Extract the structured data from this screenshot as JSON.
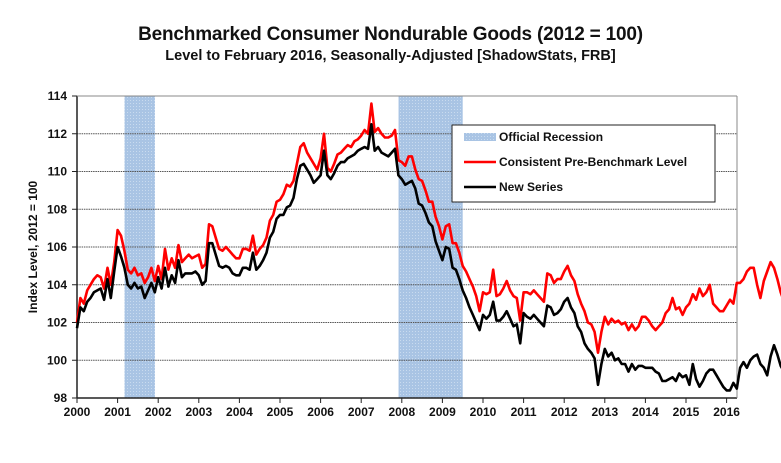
{
  "chart_data": {
    "type": "line",
    "title": "Benchmarked Consumer Nondurable Goods (2012 = 100)",
    "subtitle": "Level to February 2016, Seasonally-Adjusted [ShadowStats, FRB]",
    "xlabel": "",
    "ylabel": "Index Level, 2012 = 100",
    "xlim": [
      2000,
      2016.2
    ],
    "ylim": [
      98,
      114
    ],
    "x_ticks": [
      "2000",
      "2001",
      "2002",
      "2003",
      "2004",
      "2005",
      "2006",
      "2007",
      "2008",
      "2009",
      "2010",
      "2011",
      "2012",
      "2013",
      "2014",
      "2015",
      "2016"
    ],
    "y_ticks": [
      "98",
      "100",
      "102",
      "104",
      "106",
      "108",
      "110",
      "112",
      "114"
    ],
    "grid": "horizontal",
    "legend_position": "top-right",
    "start": "2000-01",
    "frequency": "monthly",
    "recessions": [
      {
        "label": "Official Recession",
        "start": 2001.17,
        "end": 2001.92
      },
      {
        "label": "Official Recession",
        "start": 2007.92,
        "end": 2009.5
      }
    ],
    "legend": [
      {
        "name": "Official Recession",
        "kind": "band",
        "color": "#a9c4e4"
      },
      {
        "name": "Consistent Pre-Benchmark Level",
        "kind": "line",
        "color": "#ff0000"
      },
      {
        "name": "New Series",
        "kind": "line",
        "color": "#000000"
      }
    ],
    "series": [
      {
        "name": "Consistent Pre-Benchmark Level",
        "color": "#ff0000",
        "values": [
          102.0,
          103.3,
          103.0,
          103.7,
          104.0,
          104.3,
          104.5,
          104.4,
          103.8,
          104.9,
          104.0,
          105.2,
          106.9,
          106.6,
          105.8,
          104.8,
          104.6,
          104.9,
          104.5,
          104.6,
          104.1,
          104.4,
          104.9,
          104.2,
          105.0,
          104.3,
          105.9,
          104.8,
          105.4,
          104.9,
          106.1,
          105.2,
          105.4,
          105.6,
          105.4,
          105.5,
          105.6,
          104.9,
          105.1,
          107.2,
          107.1,
          106.5,
          105.9,
          105.8,
          106.0,
          105.8,
          105.6,
          105.4,
          105.4,
          105.9,
          105.9,
          105.8,
          106.6,
          105.6,
          105.9,
          106.1,
          106.5,
          107.4,
          107.7,
          108.4,
          108.5,
          108.8,
          109.3,
          109.2,
          109.5,
          110.4,
          111.3,
          111.5,
          111.0,
          110.7,
          110.4,
          110.1,
          110.7,
          112.0,
          110.2,
          110.0,
          110.4,
          110.9,
          111.0,
          111.2,
          111.4,
          111.3,
          111.6,
          111.7,
          111.9,
          112.2,
          112.0,
          113.6,
          112.1,
          112.3,
          112.0,
          111.8,
          111.8,
          111.9,
          112.2,
          110.6,
          110.5,
          110.3,
          110.8,
          110.8,
          110.1,
          109.6,
          109.5,
          109.0,
          108.4,
          108.4,
          107.6,
          107.1,
          106.4,
          107.1,
          107.2,
          106.2,
          106.2,
          105.7,
          105.0,
          104.7,
          104.3,
          103.9,
          103.4,
          102.6,
          103.6,
          103.5,
          103.6,
          104.8,
          103.4,
          103.5,
          103.8,
          104.2,
          103.7,
          103.4,
          103.3,
          102.1,
          103.6,
          103.6,
          103.5,
          103.7,
          103.5,
          103.3,
          103.1,
          104.6,
          104.5,
          104.1,
          104.3,
          104.3,
          104.7,
          105.0,
          104.5,
          104.2,
          103.5,
          103.0,
          102.6,
          102.0,
          101.9,
          101.5,
          100.4,
          101.5,
          102.3,
          101.9,
          102.2,
          102.0,
          102.1,
          101.9,
          102.0,
          101.6,
          101.9,
          101.6,
          101.8,
          102.3,
          102.3,
          102.1,
          101.8,
          101.6,
          101.8,
          102.0,
          102.5,
          102.7,
          103.3,
          102.7,
          102.8,
          102.4,
          102.8,
          103.0,
          103.5,
          103.2,
          103.8,
          103.4,
          103.6,
          104.0,
          103.0,
          102.8,
          102.6,
          102.6,
          102.9,
          103.2,
          103.0,
          104.1,
          104.1,
          104.3,
          104.7,
          104.9,
          104.9,
          104.0,
          103.3,
          104.2,
          104.7,
          105.2,
          104.9,
          104.3,
          103.6,
          103.1,
          105.0,
          104.0
        ]
      },
      {
        "name": "New Series",
        "color": "#000000",
        "values": [
          101.7,
          102.8,
          102.6,
          103.1,
          103.3,
          103.6,
          103.7,
          103.8,
          103.2,
          104.3,
          103.3,
          104.7,
          106.0,
          105.5,
          104.9,
          104.0,
          103.8,
          104.1,
          103.8,
          103.9,
          103.3,
          103.7,
          104.1,
          103.6,
          104.4,
          103.8,
          104.9,
          103.9,
          104.5,
          104.1,
          105.3,
          104.4,
          104.6,
          104.6,
          104.6,
          104.7,
          104.5,
          104.0,
          104.2,
          106.2,
          106.2,
          105.6,
          105.0,
          104.9,
          105.0,
          104.9,
          104.6,
          104.5,
          104.5,
          104.9,
          104.9,
          104.8,
          105.7,
          104.8,
          105.0,
          105.3,
          105.7,
          106.5,
          106.8,
          107.5,
          107.7,
          107.7,
          108.1,
          108.2,
          108.6,
          109.6,
          110.3,
          110.4,
          110.1,
          109.8,
          109.4,
          109.6,
          109.8,
          111.1,
          109.8,
          109.6,
          109.9,
          110.3,
          110.5,
          110.5,
          110.7,
          110.8,
          110.9,
          111.1,
          111.2,
          111.3,
          111.2,
          112.5,
          111.1,
          111.3,
          111.0,
          110.9,
          110.8,
          111.0,
          111.2,
          109.8,
          109.6,
          109.3,
          109.4,
          109.5,
          109.1,
          108.3,
          108.2,
          107.8,
          107.3,
          107.1,
          106.3,
          105.8,
          105.3,
          106.0,
          105.9,
          104.9,
          104.8,
          104.3,
          103.7,
          103.3,
          102.8,
          102.4,
          102.0,
          101.6,
          102.4,
          102.2,
          102.4,
          103.1,
          102.1,
          102.1,
          102.3,
          102.6,
          102.2,
          101.8,
          101.9,
          100.9,
          102.5,
          102.3,
          102.2,
          102.4,
          102.2,
          102.0,
          101.8,
          102.9,
          102.8,
          102.4,
          102.5,
          102.7,
          103.1,
          103.3,
          102.8,
          102.5,
          101.8,
          101.5,
          100.9,
          100.6,
          100.4,
          100.1,
          98.7,
          99.8,
          100.6,
          100.2,
          100.4,
          100.0,
          100.1,
          99.8,
          99.8,
          99.4,
          99.8,
          99.5,
          99.7,
          99.7,
          99.6,
          99.6,
          99.6,
          99.4,
          99.3,
          98.9,
          98.9,
          99.0,
          99.1,
          98.9,
          99.3,
          99.1,
          99.2,
          98.7,
          99.8,
          99.0,
          98.6,
          98.9,
          99.3,
          99.5,
          99.5,
          99.2,
          98.9,
          98.6,
          98.4,
          98.4,
          98.8,
          98.5,
          99.6,
          99.9,
          99.6,
          100.0,
          100.2,
          100.3,
          99.8,
          99.6,
          99.2,
          100.2,
          100.8,
          100.3,
          99.7,
          99.4,
          98.6,
          100.2,
          99.3
        ]
      }
    ]
  }
}
